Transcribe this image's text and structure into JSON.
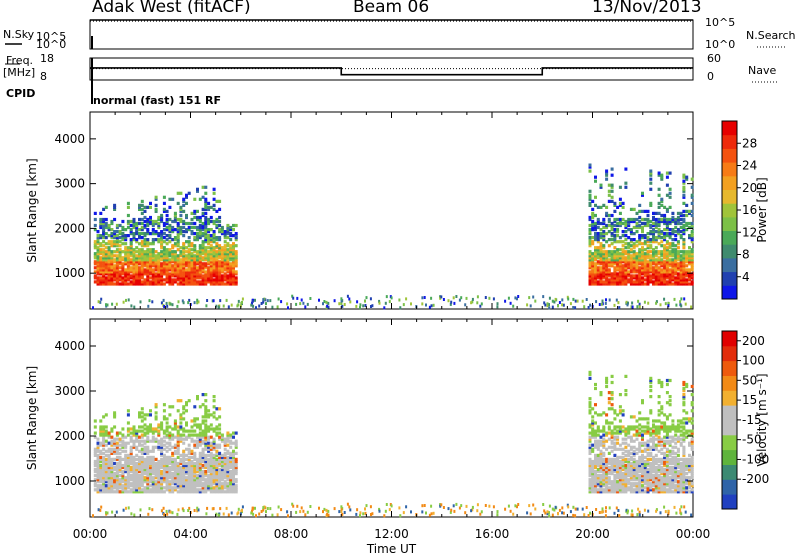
{
  "header": {
    "station": "Adak West (fitACF)",
    "beam": "Beam 06",
    "date": "13/Nov/2013"
  },
  "top_panels": {
    "nsky_label": "N.Sky",
    "nsearch_label": "N.Search",
    "counts_ticks": [
      "10^5",
      "10^0"
    ],
    "freq_label": "Freq.",
    "freq_unit": "[MHz]",
    "freq_ticks": [
      "18",
      "8"
    ],
    "nave_label": "Nave",
    "nave_ticks": [
      "60",
      "0"
    ],
    "cpid_label": "CPID",
    "cpid_text": "normal (fast) 151 RF"
  },
  "chart_data": [
    {
      "type": "line",
      "name": "counts",
      "series": [
        {
          "name": "N.Sky",
          "style": "solid",
          "x": [
            0,
            24
          ],
          "y": [
            5,
            5
          ]
        },
        {
          "name": "N.Search",
          "style": "dotted",
          "x": [
            0,
            24
          ],
          "y": [
            4.8,
            4.8
          ]
        }
      ],
      "ylim": [
        0,
        5
      ]
    },
    {
      "type": "line",
      "name": "frequency-nave",
      "series": [
        {
          "name": "Freq.",
          "style": "solid",
          "x": [
            0,
            10,
            10,
            18,
            18,
            24
          ],
          "y": [
            13.5,
            13.5,
            10.4,
            10.4,
            13.5,
            13.5
          ]
        },
        {
          "name": "Nave",
          "style": "dotted",
          "x": [
            0,
            24
          ],
          "y": [
            31,
            31
          ]
        }
      ],
      "ylim_freq": [
        8,
        18
      ],
      "ylim_nave": [
        0,
        60
      ]
    },
    {
      "type": "heatmap",
      "name": "power",
      "ylabel": "Slant Range [km]",
      "yticks": [
        "1000",
        "2000",
        "3000",
        "4000"
      ],
      "ylim": [
        200,
        4600
      ],
      "colorbar_label": "Power [dB]",
      "colorbar_ticks": [
        "4",
        "8",
        "12",
        "16",
        "20",
        "24",
        "28"
      ],
      "colors": [
        "#0f17e8",
        "#2040b0",
        "#3a6ea0",
        "#3f8b6e",
        "#4aa958",
        "#7cc047",
        "#a0c43a",
        "#e6b82e",
        "#f3a020",
        "#f77b16",
        "#f4520f",
        "#ee2a0b",
        "#e60000"
      ]
    },
    {
      "type": "heatmap",
      "name": "velocity",
      "ylabel": "Slant Range [km]",
      "yticks": [
        "1000",
        "2000",
        "3000",
        "4000"
      ],
      "ylim": [
        200,
        4600
      ],
      "colorbar_label": "Velocity [m s⁻¹]",
      "colorbar_ticks": [
        "200",
        "100",
        "50",
        "15",
        "-15",
        "-50",
        "-100",
        "-200"
      ],
      "colors": [
        "#2040c0",
        "#2f64a8",
        "#3c8a73",
        "#5fb43c",
        "#88cc44",
        "#c0c0c0",
        "#bfbfbf",
        "#f2b030",
        "#f28a16",
        "#ee5a0d",
        "#e22c0b",
        "#e00000"
      ],
      "ground_color": "#c0c0c0"
    }
  ],
  "x_axis": {
    "label": "Time UT",
    "ticks": [
      "00:00",
      "04:00",
      "08:00",
      "12:00",
      "16:00",
      "20:00",
      "00:00"
    ]
  }
}
